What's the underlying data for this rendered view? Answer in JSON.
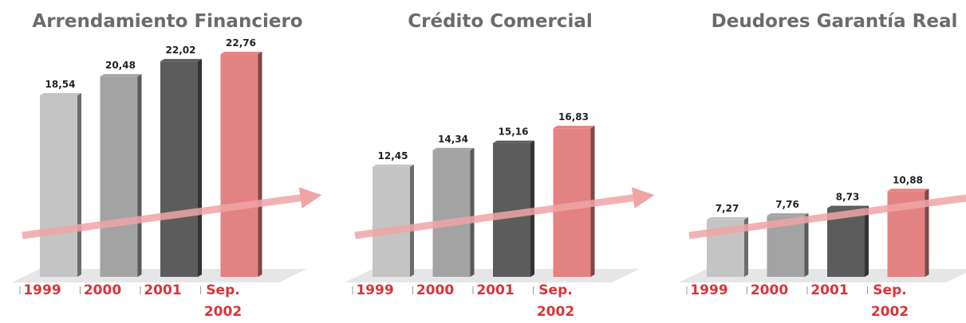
{
  "chart_data": [
    {
      "type": "bar",
      "title": "Arrendamiento Financiero",
      "categories": [
        "1999",
        "2000",
        "2001",
        "Sep. 2002"
      ],
      "values": [
        18.54,
        20.48,
        22.02,
        22.76
      ],
      "value_labels": [
        "18,54",
        "20,48",
        "22,02",
        "22,76"
      ],
      "colors": [
        "#c4c4c4",
        "#a3a3a3",
        "#5c5c5c",
        "#e38283"
      ]
    },
    {
      "type": "bar",
      "title": "Crédito Comercial",
      "categories": [
        "1999",
        "2000",
        "2001",
        "Sep. 2002"
      ],
      "values": [
        12.45,
        14.34,
        15.16,
        16.83
      ],
      "value_labels": [
        "12,45",
        "14,34",
        "15,16",
        "16,83"
      ],
      "colors": [
        "#c4c4c4",
        "#a3a3a3",
        "#5c5c5c",
        "#e38283"
      ]
    },
    {
      "type": "bar",
      "title": "Deudores Garantía Real",
      "categories": [
        "1999",
        "2000",
        "2001",
        "Sep. 2002"
      ],
      "values": [
        7.27,
        7.76,
        8.73,
        10.88
      ],
      "value_labels": [
        "7,27",
        "7,76",
        "8,73",
        "10,88"
      ],
      "colors": [
        "#c4c4c4",
        "#a3a3a3",
        "#5c5c5c",
        "#e38283"
      ]
    }
  ]
}
